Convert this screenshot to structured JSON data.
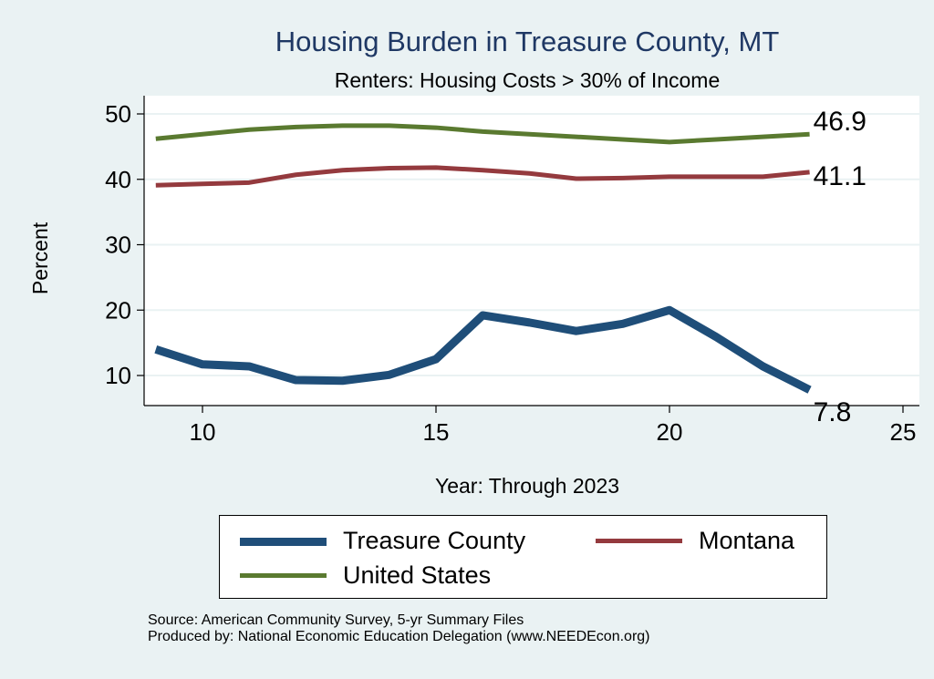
{
  "chart_data": {
    "type": "line",
    "title": "Housing Burden in Treasure County, MT",
    "subtitle": "Renters: Housing Costs > 30% of Income",
    "xlabel": "Year: Through 2023",
    "ylabel": "Percent",
    "xlim": [
      8.7,
      25.3
    ],
    "ylim": [
      5,
      52.5
    ],
    "xticks": [
      10,
      15,
      20,
      25
    ],
    "yticks": [
      10,
      20,
      30,
      40,
      50
    ],
    "grid": true,
    "legend_position": "bottom",
    "x": [
      9,
      10,
      11,
      12,
      13,
      14,
      15,
      16,
      17,
      18,
      19,
      20,
      21,
      22,
      23
    ],
    "series": [
      {
        "name": "Treasure County",
        "color": "#1f4e79",
        "values": [
          14.0,
          11.7,
          11.4,
          9.3,
          9.2,
          10.1,
          12.5,
          19.2,
          18.1,
          16.8,
          17.9,
          20.0,
          15.9,
          11.4,
          7.8
        ],
        "end_label": "7.8"
      },
      {
        "name": "Montana",
        "color": "#943a3e",
        "values": [
          39.1,
          39.3,
          39.5,
          40.7,
          41.4,
          41.7,
          41.8,
          41.4,
          40.9,
          40.1,
          40.2,
          40.4,
          40.4,
          40.4,
          41.1
        ],
        "end_label": "41.1"
      },
      {
        "name": "United States",
        "color": "#5a7a30",
        "values": [
          46.2,
          46.9,
          47.6,
          48.0,
          48.2,
          48.2,
          47.9,
          47.3,
          46.9,
          46.5,
          46.1,
          45.7,
          46.1,
          46.5,
          46.9
        ],
        "end_label": "46.9"
      }
    ]
  },
  "notes": {
    "source": "Source: American Community Survey, 5-yr Summary Files",
    "produced": "Produced by: National Economic Education Delegation (www.NEEDEcon.org)"
  }
}
